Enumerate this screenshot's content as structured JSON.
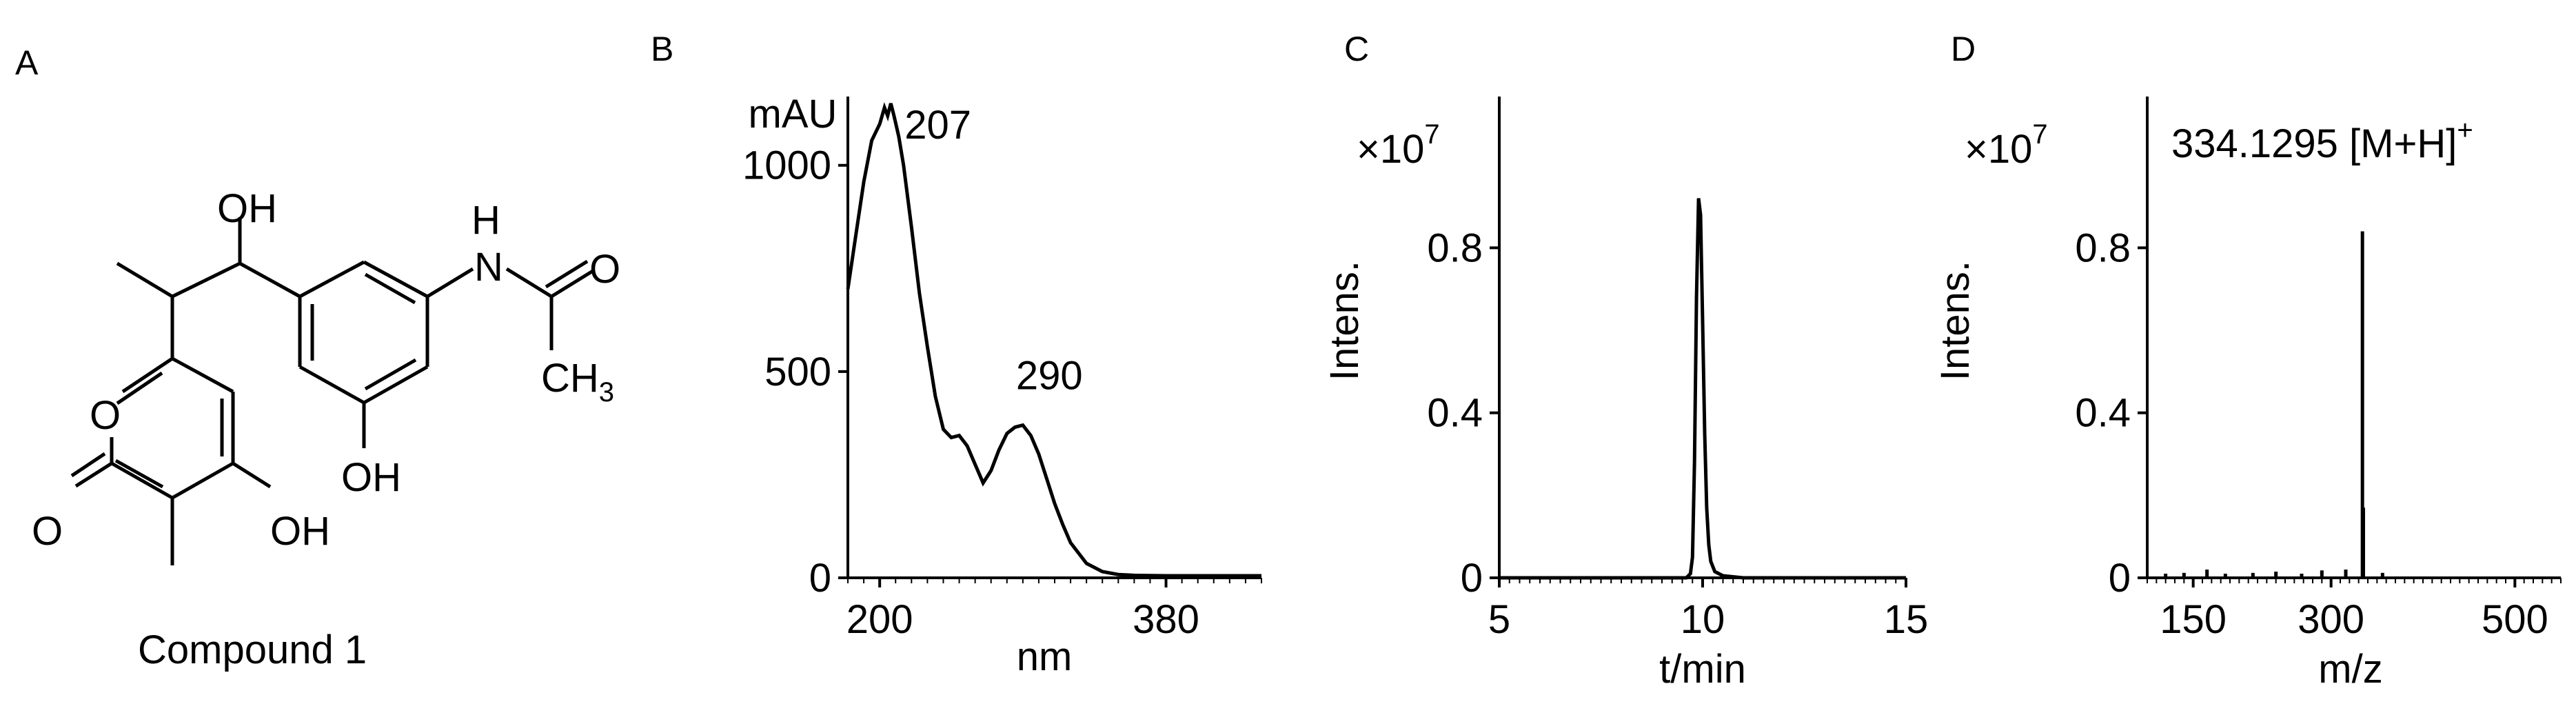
{
  "panel_labels": {
    "a": "A",
    "b": "B",
    "c": "C",
    "d": "D"
  },
  "panel_a": {
    "caption": "Compound 1",
    "atoms": {
      "hydroxyl": "OH",
      "amide_h": "H",
      "amide_n": "N",
      "amide_o": "O",
      "ch3": "CH",
      "ch3_sub": "3",
      "ring_o": "O",
      "lactone_o": "O"
    }
  },
  "chart_data": [
    {
      "id": "B",
      "type": "line",
      "title": "",
      "xlabel": "nm",
      "ylabel": "mAU",
      "xlim": [
        180,
        440
      ],
      "ylim": [
        0,
        1150
      ],
      "xticks": [
        {
          "v": 200,
          "label": "200"
        },
        {
          "v": 380,
          "label": "380"
        }
      ],
      "yticks": [
        {
          "v": 0,
          "label": "0"
        },
        {
          "v": 500,
          "label": "500"
        },
        {
          "v": 1000,
          "label": "1000"
        }
      ],
      "annotations": [
        {
          "x": 207,
          "y": 1115,
          "text": "207"
        },
        {
          "x": 290,
          "y": 400,
          "text": "290"
        }
      ],
      "series": [
        {
          "x": [
            180,
            185,
            190,
            195,
            200,
            203,
            205,
            207,
            209,
            212,
            215,
            220,
            225,
            230,
            235,
            240,
            245,
            250,
            255,
            260,
            265,
            270,
            275,
            280,
            285,
            290,
            295,
            300,
            305,
            310,
            315,
            320,
            330,
            340,
            350,
            360,
            380,
            400,
            420,
            440
          ],
          "y": [
            700,
            830,
            960,
            1060,
            1100,
            1140,
            1120,
            1150,
            1120,
            1070,
            1000,
            850,
            690,
            560,
            440,
            360,
            340,
            345,
            320,
            275,
            230,
            260,
            310,
            350,
            365,
            370,
            345,
            300,
            240,
            180,
            130,
            85,
            35,
            15,
            8,
            6,
            5,
            5,
            5,
            5
          ]
        }
      ]
    },
    {
      "id": "C",
      "type": "line",
      "title": "",
      "xlabel": "t/min",
      "ylabel": "Intens.",
      "scale_label": "×10",
      "scale_exp": "7",
      "xlim": [
        5,
        15
      ],
      "ylim": [
        0,
        1.15
      ],
      "xticks": [
        {
          "v": 5,
          "label": "5"
        },
        {
          "v": 10,
          "label": "10"
        },
        {
          "v": 15,
          "label": "15"
        }
      ],
      "yticks": [
        {
          "v": 0,
          "label": "0"
        },
        {
          "v": 0.4,
          "label": "0.4"
        },
        {
          "v": 0.8,
          "label": "0.8"
        }
      ],
      "series": [
        {
          "x": [
            5,
            9.0,
            9.6,
            9.7,
            9.75,
            9.8,
            9.85,
            9.9,
            9.95,
            10.0,
            10.05,
            10.1,
            10.15,
            10.2,
            10.3,
            10.5,
            11,
            15
          ],
          "y": [
            0,
            0,
            0,
            0.01,
            0.05,
            0.28,
            0.68,
            0.92,
            0.88,
            0.62,
            0.35,
            0.17,
            0.08,
            0.04,
            0.015,
            0.005,
            0,
            0
          ]
        }
      ]
    },
    {
      "id": "D",
      "type": "bar",
      "title": "",
      "xlabel": "m/z",
      "ylabel": "Intens.",
      "scale_label": "×10",
      "scale_exp": "7",
      "xlim": [
        100,
        550
      ],
      "ylim": [
        0,
        1.15
      ],
      "xticks": [
        {
          "v": 150,
          "label": "150"
        },
        {
          "v": 300,
          "label": "300"
        },
        {
          "v": 500,
          "label": "500"
        }
      ],
      "yticks": [
        {
          "v": 0,
          "label": "0"
        },
        {
          "v": 0.4,
          "label": "0.4"
        },
        {
          "v": 0.8,
          "label": "0.8"
        }
      ],
      "annotations": [
        {
          "x": 334.1295,
          "y": 1.0,
          "text": "334.1295 [M+H]",
          "sup": "+"
        }
      ],
      "peaks": [
        {
          "mz": 120,
          "i": 0.01
        },
        {
          "mz": 140,
          "i": 0.012
        },
        {
          "mz": 165,
          "i": 0.02
        },
        {
          "mz": 185,
          "i": 0.01
        },
        {
          "mz": 215,
          "i": 0.012
        },
        {
          "mz": 240,
          "i": 0.015
        },
        {
          "mz": 268,
          "i": 0.01
        },
        {
          "mz": 290,
          "i": 0.018
        },
        {
          "mz": 316,
          "i": 0.02
        },
        {
          "mz": 334.1295,
          "i": 0.84
        },
        {
          "mz": 335.13,
          "i": 0.17
        },
        {
          "mz": 356,
          "i": 0.012
        }
      ]
    }
  ]
}
